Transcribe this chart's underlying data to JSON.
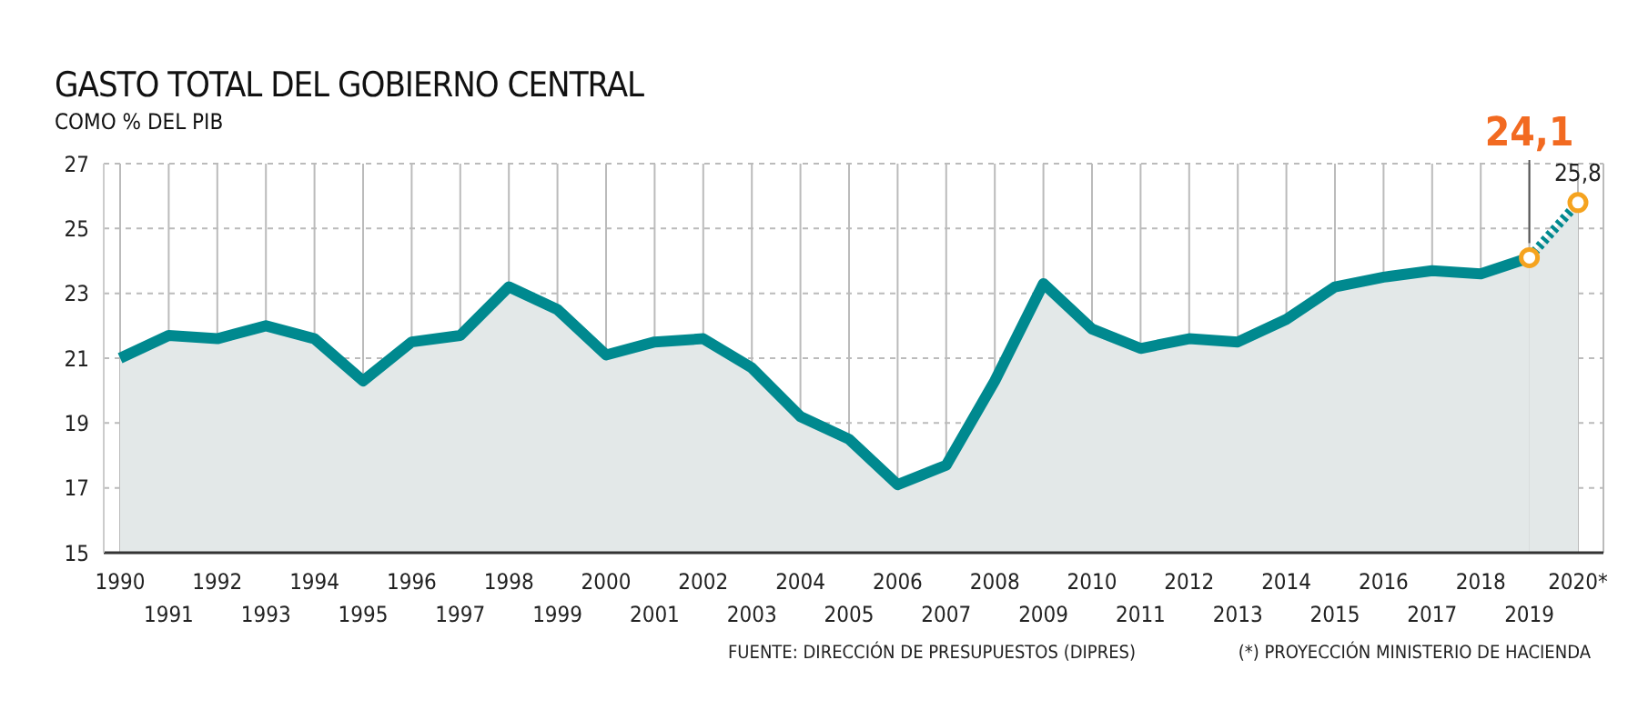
{
  "chart_data": {
    "type": "area",
    "title": "GASTO TOTAL DEL GOBIERNO CENTRAL",
    "subtitle": "COMO % DEL PIB",
    "categories": [
      "1990",
      "1991",
      "1992",
      "1993",
      "1994",
      "1995",
      "1996",
      "1997",
      "1998",
      "1999",
      "2000",
      "2001",
      "2002",
      "2003",
      "2004",
      "2005",
      "2006",
      "2007",
      "2008",
      "2009",
      "2010",
      "2011",
      "2012",
      "2013",
      "2014",
      "2015",
      "2016",
      "2017",
      "2018",
      "2019",
      "2020*"
    ],
    "series": [
      {
        "color": "#00898f",
        "line_style": "solid",
        "marker": "none",
        "values": [
          21.0,
          21.7,
          21.6,
          22.0,
          21.6,
          20.3,
          21.5,
          21.7,
          23.2,
          22.5,
          21.1,
          21.5,
          21.6,
          20.7,
          19.2,
          18.5,
          17.1,
          17.7,
          20.3,
          23.3,
          21.9,
          21.3,
          21.6,
          21.5,
          22.2,
          23.2,
          23.5,
          23.7,
          23.6,
          24.1,
          null
        ]
      },
      {
        "color": "#00898f",
        "line_style": "dotted",
        "marker": "circle",
        "values": [
          null,
          null,
          null,
          null,
          null,
          null,
          null,
          null,
          null,
          null,
          null,
          null,
          null,
          null,
          null,
          null,
          null,
          null,
          null,
          null,
          null,
          null,
          null,
          null,
          null,
          null,
          null,
          null,
          null,
          24.1,
          25.8
        ],
        "value_labels": [
          null,
          null,
          null,
          null,
          null,
          null,
          null,
          null,
          null,
          null,
          null,
          null,
          null,
          null,
          null,
          null,
          null,
          null,
          null,
          null,
          null,
          null,
          null,
          null,
          null,
          null,
          null,
          null,
          null,
          "24,1",
          "25,8"
        ]
      }
    ],
    "ylim": [
      15,
      27
    ],
    "yticks": [
      15,
      17,
      19,
      21,
      23,
      25,
      27
    ],
    "grid": true,
    "annotations": [
      "FUENTE: DIRECCIÓN DE PRESUPUESTOS (DIPRES)",
      "(*) PROYECCIÓN MINISTERIO DE HACIENDA"
    ]
  }
}
